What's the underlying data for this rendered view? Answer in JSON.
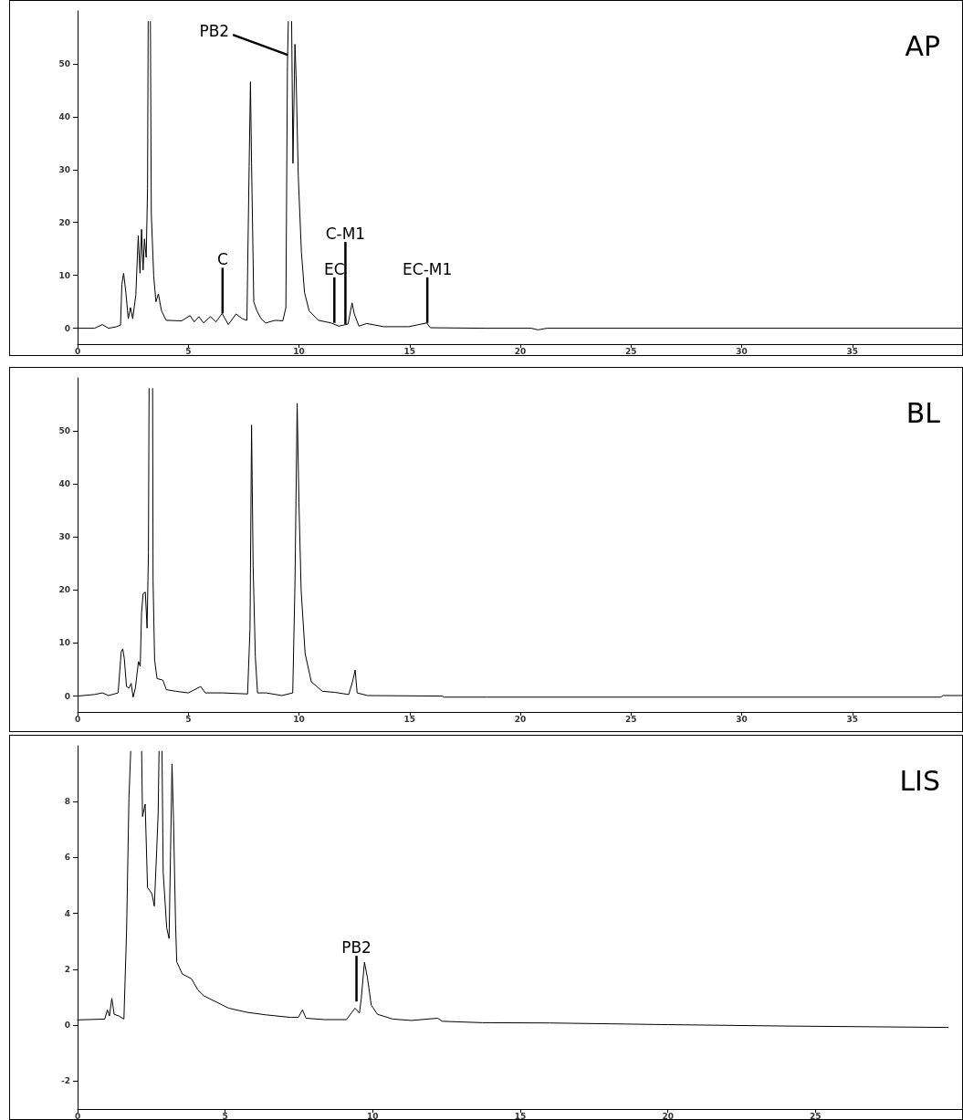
{
  "chart_data": [
    {
      "type": "line",
      "title": "AP",
      "x": [
        0,
        0.77,
        1.12,
        1.4,
        1.76,
        1.94,
        2.0,
        2.08,
        2.18,
        2.29,
        2.39,
        2.49,
        2.63,
        2.74,
        2.82,
        2.89,
        2.96,
        3.02,
        3.1,
        3.16,
        3.19,
        3.2,
        3.27,
        3.29,
        3.33,
        3.44,
        3.54,
        3.65,
        3.79,
        4.0,
        4.7,
        5.08,
        5.27,
        5.48,
        5.69,
        6.0,
        6.25,
        6.53,
        6.81,
        7.16,
        7.44,
        7.65,
        7.75,
        7.81,
        7.86,
        7.96,
        8.1,
        8.29,
        8.5,
        8.92,
        9.27,
        9.41,
        9.48,
        9.52,
        9.55,
        9.65,
        9.67,
        9.73,
        9.82,
        9.87,
        9.97,
        10.11,
        10.25,
        10.46,
        10.88,
        11.45,
        11.8,
        12.22,
        12.4,
        12.5,
        12.71,
        13.06,
        13.83,
        14.96,
        15.77,
        15.94,
        18.47,
        20.5,
        20.8,
        21.2,
        40
      ],
      "values": [
        0,
        0,
        0.7,
        0,
        0.3,
        0.6,
        8.3,
        10.4,
        6.8,
        1.8,
        3.9,
        1.8,
        6.2,
        17.5,
        10.4,
        18.7,
        11,
        16.9,
        13.4,
        26.4,
        58,
        null,
        null,
        58,
        21.7,
        9.8,
        5,
        6.5,
        3.3,
        1.5,
        1.4,
        2.4,
        1.2,
        2.2,
        1,
        2.2,
        1.2,
        2.8,
        0.7,
        2.7,
        1.8,
        1.5,
        30.6,
        46.6,
        31.2,
        5,
        3.3,
        1.8,
        1,
        1.5,
        1.4,
        3.9,
        49.6,
        58,
        null,
        null,
        58,
        31.2,
        53.7,
        47.8,
        28.8,
        14.5,
        6.8,
        3.3,
        1.5,
        1,
        0.4,
        0.8,
        4.8,
        2.7,
        0.4,
        0.9,
        0.3,
        0.3,
        1,
        0.1,
        0,
        0,
        -0.3,
        0,
        0
      ],
      "color": "#000000",
      "xlim": [
        0,
        40
      ],
      "xticks": [
        0,
        5,
        10,
        15,
        20,
        25,
        30,
        35
      ],
      "ylim": [
        -3,
        60
      ],
      "yticks": [
        0,
        10,
        20,
        30,
        40,
        50
      ],
      "annotations": [
        {
          "text": "PB2",
          "x": 9.49,
          "y": 51.7
        },
        {
          "text": "C",
          "x": 6.55,
          "y": 2.8
        },
        {
          "text": "EC",
          "x": 11.6,
          "y": 1
        },
        {
          "text": "C-M1",
          "x": 12.1,
          "y": 0.8
        },
        {
          "text": "EC-M1",
          "x": 15.8,
          "y": 1
        }
      ]
    },
    {
      "type": "line",
      "title": "BL",
      "x": [
        0,
        0.77,
        1.12,
        1.4,
        1.83,
        1.97,
        2.04,
        2.11,
        2.21,
        2.32,
        2.42,
        2.51,
        2.61,
        2.75,
        2.83,
        2.89,
        2.96,
        3.06,
        3.14,
        3.2,
        3.23,
        3.25,
        3.37,
        3.39,
        3.41,
        3.48,
        3.59,
        3.85,
        4.01,
        4.44,
        5.0,
        5.56,
        5.77,
        6.55,
        7.68,
        7.79,
        7.86,
        7.93,
        8.03,
        8.13,
        8.52,
        9.23,
        9.72,
        9.82,
        9.92,
        10.0,
        10.1,
        10.28,
        10.56,
        11.06,
        11.62,
        12.25,
        12.42,
        12.54,
        12.63,
        13.1,
        16.48,
        16.55,
        18.5,
        39.0,
        39.1,
        40
      ],
      "values": [
        0,
        0.3,
        0.6,
        0.1,
        0.6,
        8.3,
        8.9,
        7.1,
        1.8,
        1.5,
        2.4,
        -0.2,
        1.5,
        6.5,
        5.6,
        15.7,
        19.3,
        19.6,
        12.8,
        27,
        58,
        null,
        null,
        58,
        21.7,
        6.8,
        3.3,
        3,
        1.2,
        0.9,
        0.6,
        1.8,
        0.6,
        0.6,
        0.4,
        12.8,
        51.1,
        24.6,
        7.4,
        0.6,
        0.6,
        0.1,
        0.6,
        21.1,
        55.2,
        36.5,
        19.9,
        8,
        2.7,
        0.9,
        0.7,
        0.3,
        2.7,
        4.9,
        0.6,
        0.1,
        0,
        -0.2,
        -0.2,
        -0.2,
        0.1,
        0.1
      ],
      "color": "#000000",
      "xlim": [
        0,
        40
      ],
      "xticks": [
        0,
        5,
        10,
        15,
        20,
        25,
        30,
        35
      ],
      "ylim": [
        -3,
        60
      ],
      "yticks": [
        0,
        10,
        20,
        30,
        40,
        50
      ]
    },
    {
      "type": "line",
      "title": "LIS",
      "x": [
        0,
        0.92,
        1.01,
        1.08,
        1.16,
        1.24,
        1.4,
        1.57,
        1.66,
        1.74,
        1.8,
        1.85,
        2.13,
        2.17,
        2.2,
        2.29,
        2.37,
        2.45,
        2.52,
        2.6,
        2.68,
        2.73,
        2.76,
        2.78,
        2.84,
        2.86,
        2.9,
        3.02,
        3.1,
        3.15,
        3.2,
        3.25,
        3.32,
        3.36,
        3.55,
        3.86,
        4.07,
        4.28,
        4.7,
        5.12,
        5.75,
        6.38,
        7.22,
        7.48,
        7.62,
        7.74,
        8.37,
        9.11,
        9.4,
        9.55,
        9.61,
        9.72,
        9.82,
        9.95,
        10.16,
        10.68,
        11.31,
        12.2,
        12.36,
        13.72,
        16,
        20,
        24,
        29.5
      ],
      "values": [
        0.19,
        0.22,
        0.55,
        0.33,
        0.96,
        0.39,
        0.33,
        0.22,
        3.37,
        8.13,
        9.8,
        null,
        null,
        9.8,
        7.47,
        7.91,
        4.92,
        4.81,
        4.7,
        4.26,
        6.25,
        7.58,
        9.8,
        null,
        null,
        9.8,
        5.48,
        3.48,
        3.1,
        6.25,
        9.35,
        7.36,
        3.6,
        2.27,
        1.83,
        1.66,
        1.27,
        1.05,
        0.83,
        0.61,
        0.46,
        0.37,
        0.28,
        0.28,
        0.55,
        0.25,
        0.2,
        0.2,
        0.61,
        0.44,
        0.94,
        2.25,
        1.71,
        0.72,
        0.39,
        0.22,
        0.17,
        0.25,
        0.14,
        0.09,
        0.08,
        0.02,
        -0.03,
        -0.08
      ],
      "color": "#000000",
      "xlim": [
        0,
        30
      ],
      "xticks": [
        0,
        5,
        10,
        15,
        20,
        25
      ],
      "ylim": [
        -3,
        10
      ],
      "yticks": [
        -2,
        0,
        2,
        4,
        6,
        8
      ],
      "annotations": [
        {
          "text": "PB2",
          "x": 9.45,
          "y": 0.85
        }
      ]
    }
  ]
}
